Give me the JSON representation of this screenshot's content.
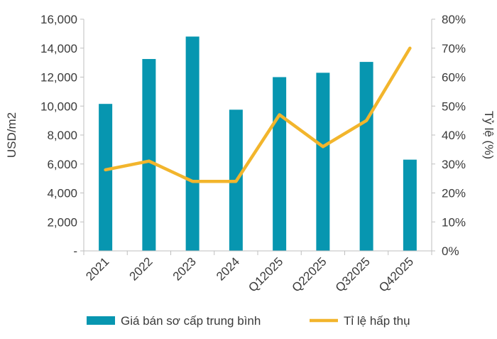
{
  "chart_data": {
    "type": "bar+line",
    "categories": [
      "2021",
      "2022",
      "2023",
      "2024",
      "Q12025",
      "Q22025",
      "Q32025",
      "Q42025"
    ],
    "series": [
      {
        "name": "Giá bán sơ cấp trung bình",
        "type": "bar",
        "axis": "left",
        "color": "#0796b0",
        "values": [
          10150,
          13250,
          14800,
          9750,
          12000,
          12300,
          13050,
          6300
        ]
      },
      {
        "name": "Tỉ lệ hấp thụ",
        "type": "line",
        "axis": "right",
        "color": "#f2b52c",
        "values": [
          28,
          31,
          24,
          24,
          47,
          36,
          45,
          70
        ]
      }
    ],
    "y_left": {
      "label": "USD/m2",
      "range": [
        0,
        16000
      ],
      "ticks": [
        "-",
        "2,000",
        "4,000",
        "6,000",
        "8,000",
        "10,000",
        "12,000",
        "14,000",
        "16,000"
      ]
    },
    "y_right": {
      "label": "Tỷ lệ (%)",
      "range": [
        0,
        80
      ],
      "ticks": [
        "0%",
        "10%",
        "20%",
        "30%",
        "40%",
        "50%",
        "60%",
        "70%",
        "80%"
      ]
    },
    "grid": false,
    "legend": "bottom"
  }
}
